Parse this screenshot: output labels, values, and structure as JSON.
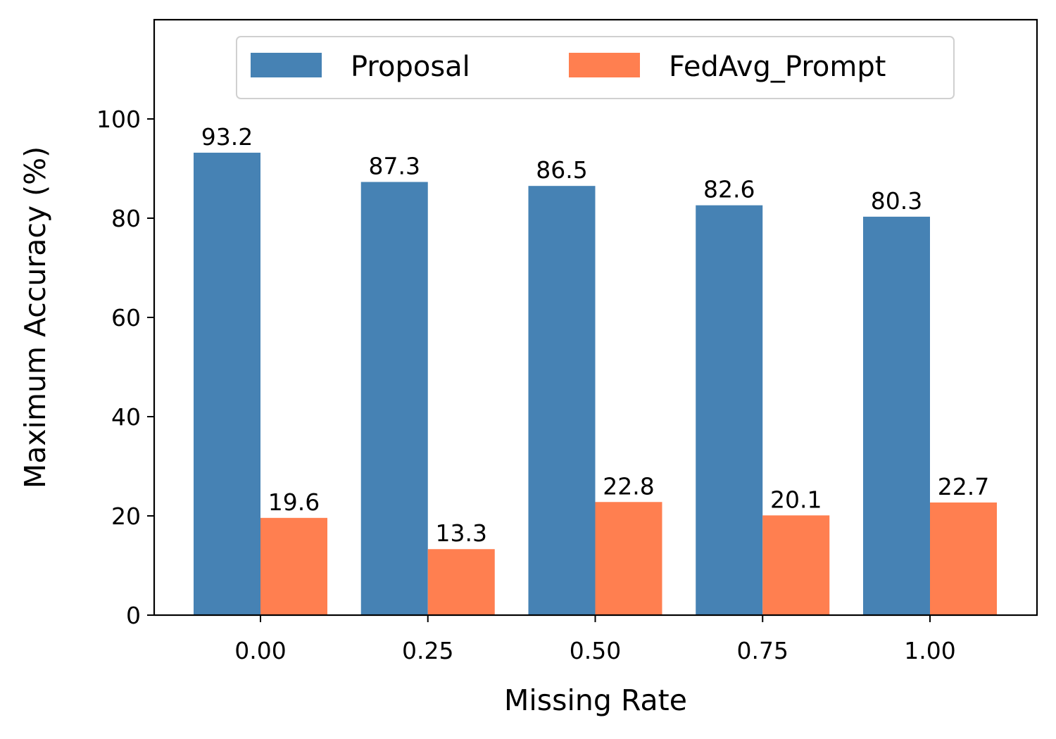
{
  "chart_data": {
    "type": "bar",
    "title": "",
    "xlabel": "Missing Rate",
    "ylabel": "Maximum Accuracy (%)",
    "categories": [
      "0.00",
      "0.25",
      "0.50",
      "0.75",
      "1.00"
    ],
    "series": [
      {
        "name": "Proposal",
        "color": "#4682b4",
        "values": [
          93.2,
          87.3,
          86.5,
          82.6,
          80.3
        ],
        "labels": [
          "93.2",
          "87.3",
          "86.5",
          "82.6",
          "80.3"
        ]
      },
      {
        "name": "FedAvg_Prompt",
        "color": "#ff7f50",
        "values": [
          19.6,
          13.3,
          22.8,
          20.1,
          22.7
        ],
        "labels": [
          "19.6",
          "13.3",
          "22.8",
          "20.1",
          "22.7"
        ]
      }
    ],
    "ylim": [
      0,
      120
    ],
    "yticks": [
      "0",
      "20",
      "40",
      "60",
      "80",
      "100"
    ],
    "grid": false,
    "legend_position": "top-center"
  }
}
